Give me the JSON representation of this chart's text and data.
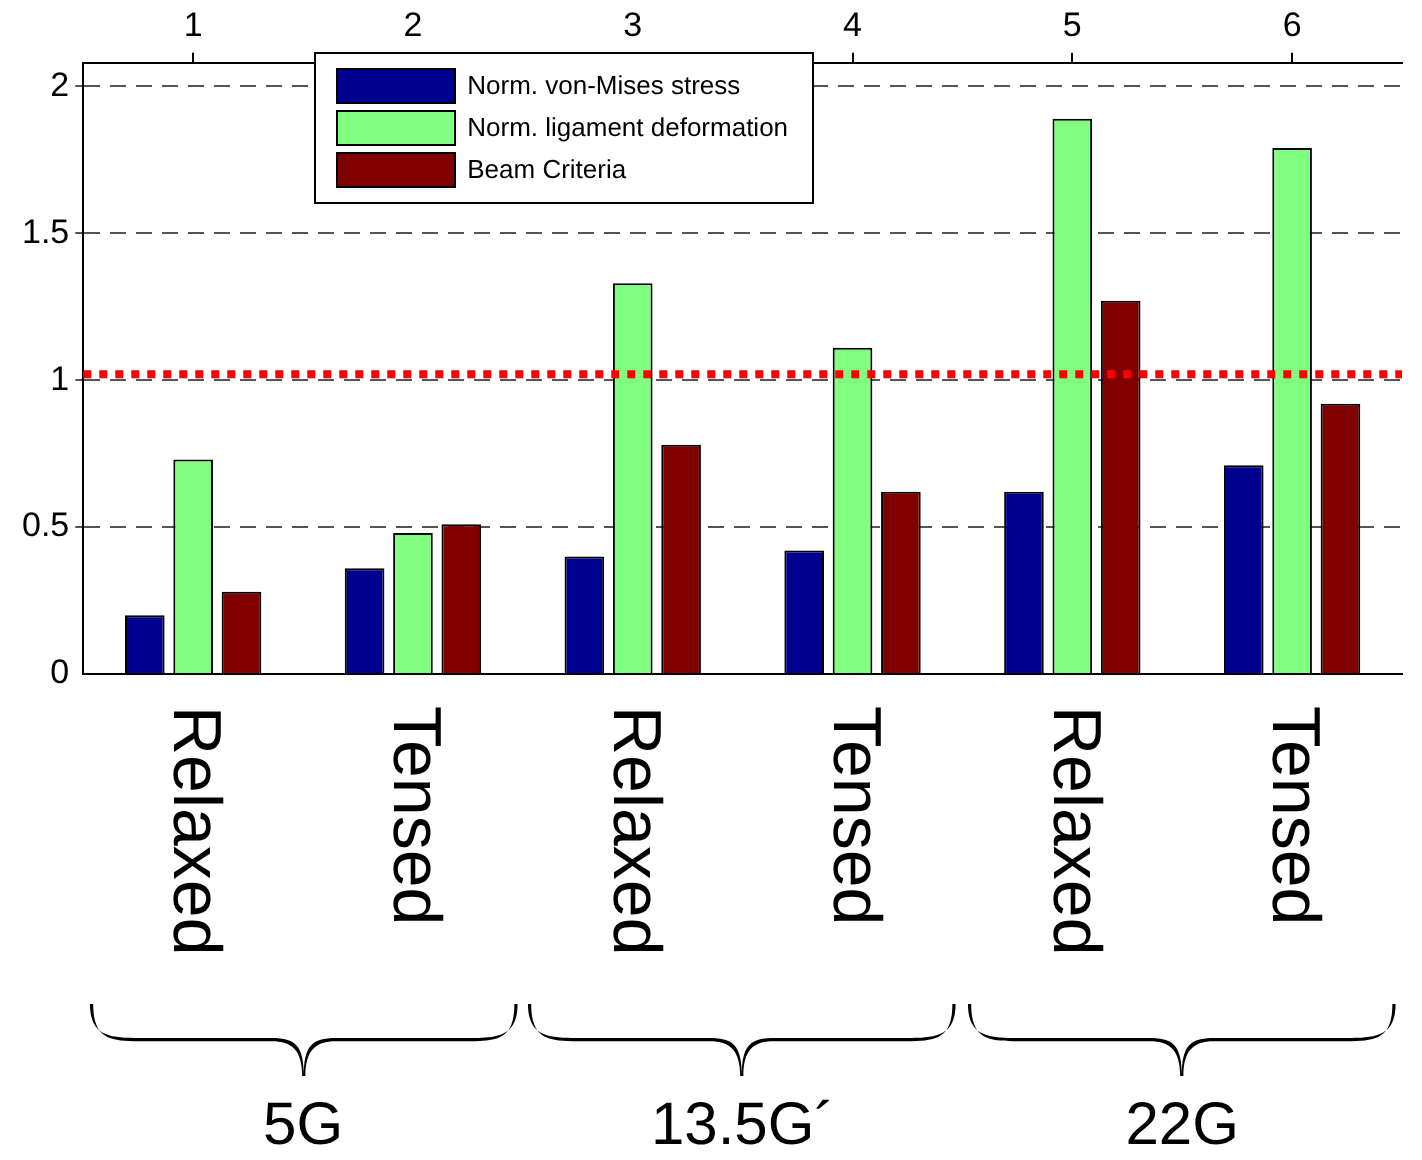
{
  "chart_data": {
    "type": "bar",
    "categories": [
      "Relaxed",
      "Tensed",
      "Relaxed",
      "Tensed",
      "Relaxed",
      "Tensed"
    ],
    "series": [
      {
        "name": "Norm. von-Mises stress",
        "color": "#000090",
        "values": [
          0.2,
          0.36,
          0.4,
          0.42,
          0.62,
          0.71
        ]
      },
      {
        "name": "Norm. ligament deformation",
        "color": "#80ff80",
        "values": [
          0.73,
          0.48,
          1.33,
          1.11,
          1.89,
          1.79
        ]
      },
      {
        "name": "Beam Criteria",
        "color": "#800000",
        "values": [
          0.28,
          0.51,
          0.78,
          0.62,
          1.27,
          0.92
        ]
      }
    ],
    "ylim": [
      0,
      2.08
    ],
    "yticks": [
      0,
      0.5,
      1,
      1.5,
      2
    ],
    "x2lim": [
      0.5,
      6.5
    ],
    "x2ticks": [
      1,
      2,
      3,
      4,
      5,
      6
    ],
    "ref_lines": [
      {
        "axis": "y",
        "value": 1.02,
        "color": "#ff0000",
        "line_style": "dotted"
      }
    ],
    "annotations": [
      "5G",
      "13.5G´",
      "22G"
    ],
    "grid": "y",
    "legend": "top left"
  }
}
